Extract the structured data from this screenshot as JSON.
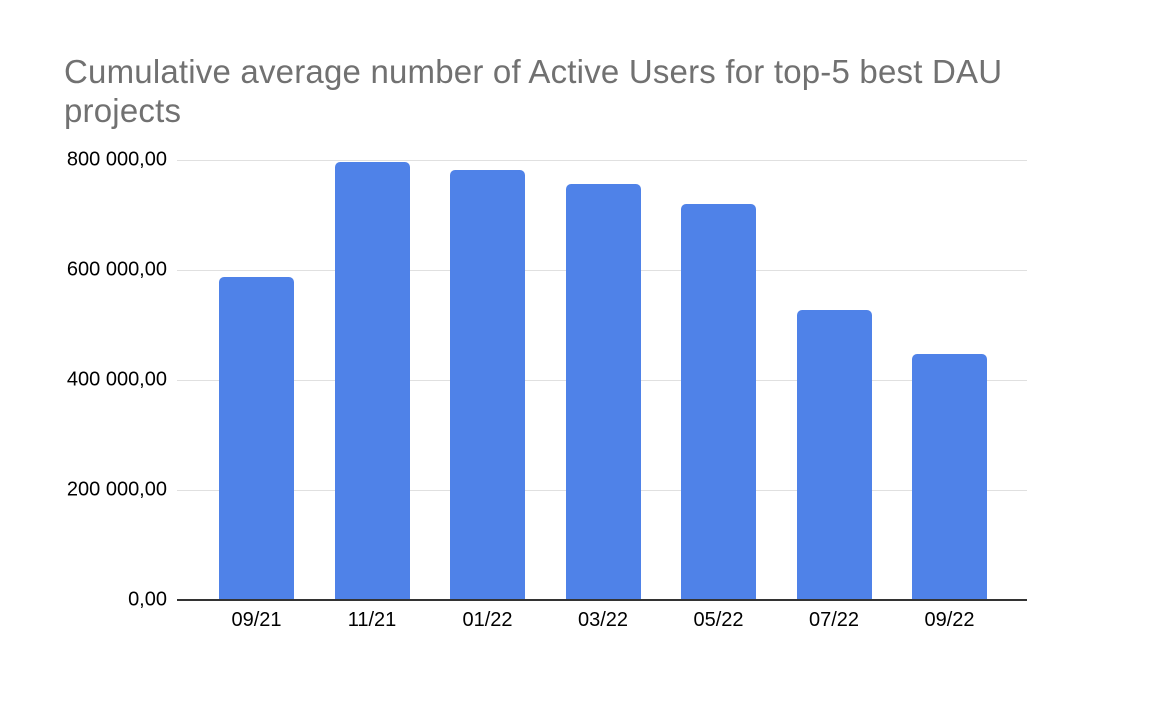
{
  "title": {
    "text": "Cumulative average number of Active Users for top-5 best DAU projects"
  },
  "chart_data": {
    "type": "bar",
    "title": "Cumulative average number of Active Users for top-5 best DAU projects",
    "categories": [
      "09/21",
      "11/21",
      "01/22",
      "03/22",
      "05/22",
      "07/22",
      "09/22"
    ],
    "values": [
      588000,
      796000,
      782000,
      756000,
      720000,
      527000,
      447000
    ],
    "xlabel": "",
    "ylabel": "",
    "ylim": [
      0,
      800000
    ],
    "y_ticks": [
      {
        "value": 0,
        "label": "0,00"
      },
      {
        "value": 200000,
        "label": "200 000,00"
      },
      {
        "value": 400000,
        "label": "400 000,00"
      },
      {
        "value": 600000,
        "label": "600 000,00"
      },
      {
        "value": 800000,
        "label": "800 000,00"
      }
    ],
    "grid": true,
    "legend": "none",
    "colors": {
      "bar": "#4f82e8",
      "gridline": "#e0e0e0",
      "axis_line": "#333333",
      "tick_label": "#000000",
      "title": "#717171",
      "background": "#ffffff"
    }
  }
}
